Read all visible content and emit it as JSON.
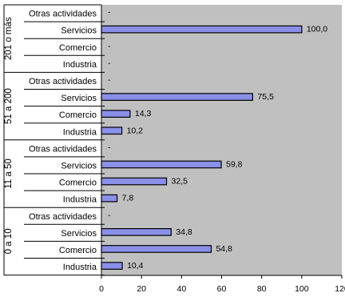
{
  "chart_data": {
    "type": "bar",
    "orientation": "horizontal",
    "groups": [
      {
        "label": "201 o más",
        "rows": [
          {
            "category": "Otras actividades",
            "value": null,
            "value_label": "-"
          },
          {
            "category": "Servicios",
            "value": 100.0,
            "value_label": "100,0"
          },
          {
            "category": "Comercio",
            "value": null,
            "value_label": "-"
          },
          {
            "category": "Industria",
            "value": null,
            "value_label": "-"
          }
        ]
      },
      {
        "label": "51 a 200",
        "rows": [
          {
            "category": "Otras actividades",
            "value": null,
            "value_label": "-"
          },
          {
            "category": "Servicios",
            "value": 75.5,
            "value_label": "75,5"
          },
          {
            "category": "Comercio",
            "value": 14.3,
            "value_label": "14,3"
          },
          {
            "category": "Industria",
            "value": 10.2,
            "value_label": "10,2"
          }
        ]
      },
      {
        "label": "11 a 50",
        "rows": [
          {
            "category": "Otras actividades",
            "value": null,
            "value_label": "-"
          },
          {
            "category": "Servicios",
            "value": 59.8,
            "value_label": "59,8"
          },
          {
            "category": "Comercio",
            "value": 32.5,
            "value_label": "32,5"
          },
          {
            "category": "Industria",
            "value": 7.8,
            "value_label": "7,8"
          }
        ]
      },
      {
        "label": "0 a 10",
        "rows": [
          {
            "category": "Otras actividades",
            "value": null,
            "value_label": "-"
          },
          {
            "category": "Servicios",
            "value": 34.8,
            "value_label": "34,8"
          },
          {
            "category": "Comercio",
            "value": 54.8,
            "value_label": "54,8"
          },
          {
            "category": "Industria",
            "value": 10.4,
            "value_label": "10,4"
          }
        ]
      }
    ],
    "xlim": [
      0,
      120
    ],
    "xticks": [
      0,
      20,
      40,
      60,
      80,
      100,
      120
    ],
    "xtick_labels": [
      "0",
      "20",
      "40",
      "60",
      "80",
      "100",
      "120"
    ],
    "grid": false,
    "colors": {
      "plot_background": "#c0c0c0",
      "bar_fill": "#8a8fe8",
      "bar_stroke": "#000000",
      "axis": "#000000"
    }
  }
}
